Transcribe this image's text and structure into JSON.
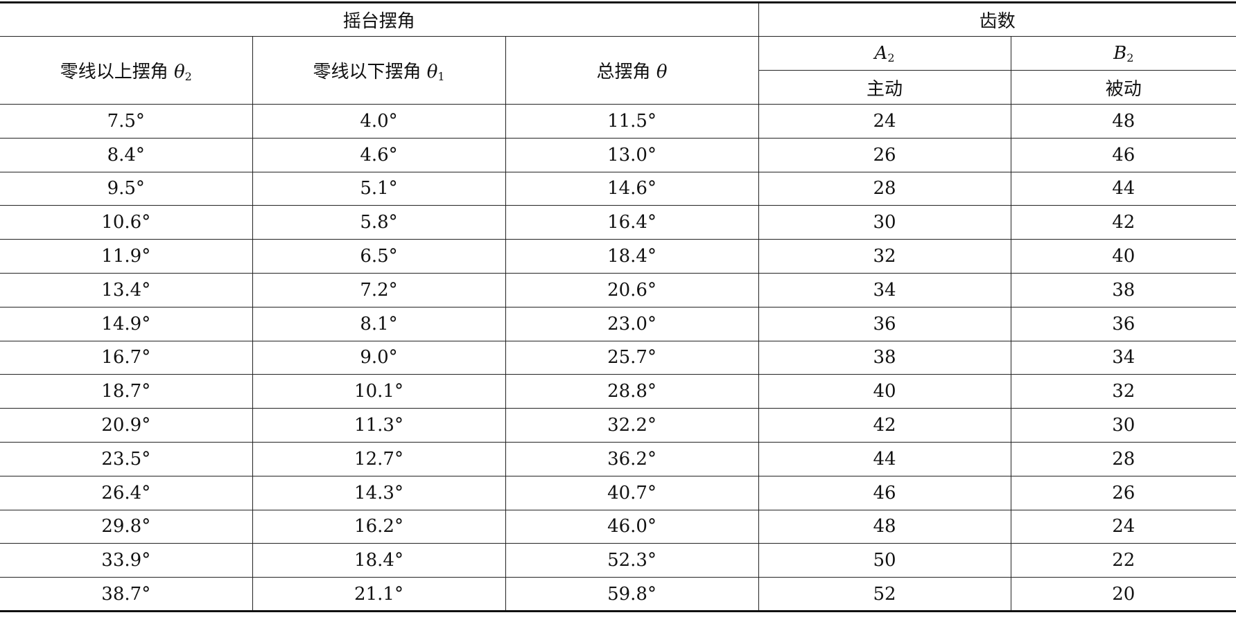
{
  "header": {
    "group_swing": "摇台摆角",
    "group_teeth": "齿数",
    "col_above": {
      "label": "零线以上摆角 ",
      "symbol": "θ",
      "sub": "2"
    },
    "col_below": {
      "label": "零线以下摆角 ",
      "symbol": "θ",
      "sub": "1"
    },
    "col_total": {
      "label": "总摆角 ",
      "symbol": "θ"
    },
    "col_a": {
      "symbol": "A",
      "sub": "2",
      "role": "主动"
    },
    "col_b": {
      "symbol": "B",
      "sub": "2",
      "role": "被动"
    }
  },
  "rows": [
    [
      "7.5°",
      "4.0°",
      "11.5°",
      "24",
      "48"
    ],
    [
      "8.4°",
      "4.6°",
      "13.0°",
      "26",
      "46"
    ],
    [
      "9.5°",
      "5.1°",
      "14.6°",
      "28",
      "44"
    ],
    [
      "10.6°",
      "5.8°",
      "16.4°",
      "30",
      "42"
    ],
    [
      "11.9°",
      "6.5°",
      "18.4°",
      "32",
      "40"
    ],
    [
      "13.4°",
      "7.2°",
      "20.6°",
      "34",
      "38"
    ],
    [
      "14.9°",
      "8.1°",
      "23.0°",
      "36",
      "36"
    ],
    [
      "16.7°",
      "9.0°",
      "25.7°",
      "38",
      "34"
    ],
    [
      "18.7°",
      "10.1°",
      "28.8°",
      "40",
      "32"
    ],
    [
      "20.9°",
      "11.3°",
      "32.2°",
      "42",
      "30"
    ],
    [
      "23.5°",
      "12.7°",
      "36.2°",
      "44",
      "28"
    ],
    [
      "26.4°",
      "14.3°",
      "40.7°",
      "46",
      "26"
    ],
    [
      "29.8°",
      "16.2°",
      "46.0°",
      "48",
      "24"
    ],
    [
      "33.9°",
      "18.4°",
      "52.3°",
      "50",
      "22"
    ],
    [
      "38.7°",
      "21.1°",
      "59.8°",
      "52",
      "20"
    ]
  ]
}
